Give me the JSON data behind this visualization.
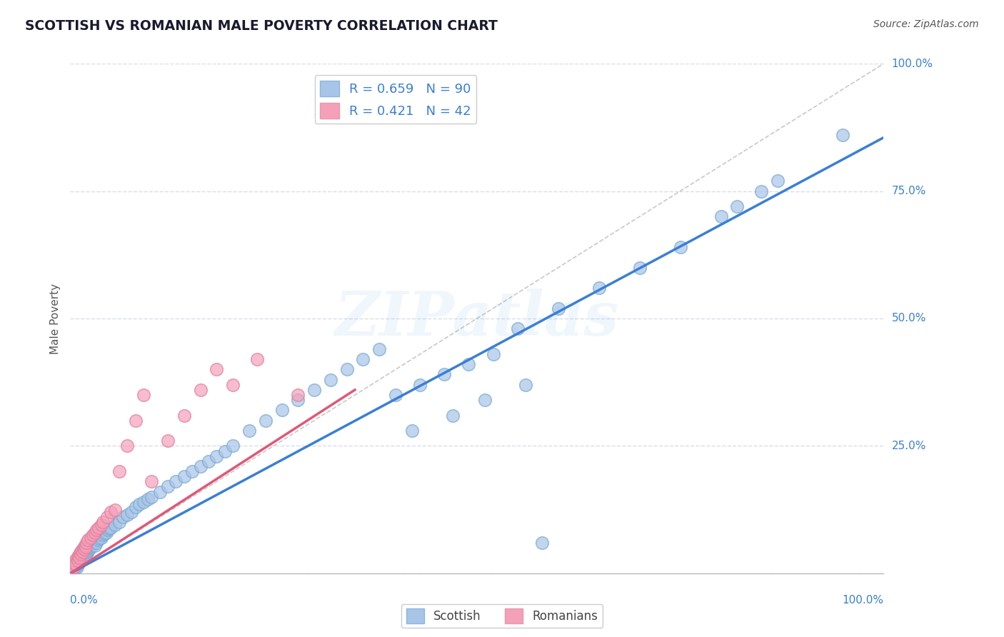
{
  "title": "SCOTTISH VS ROMANIAN MALE POVERTY CORRELATION CHART",
  "source": "Source: ZipAtlas.com",
  "ylabel": "Male Poverty",
  "ytick_vals": [
    0.0,
    0.25,
    0.5,
    0.75,
    1.0
  ],
  "ytick_labels": [
    "",
    "",
    "",
    "",
    ""
  ],
  "scottish_R": 0.659,
  "scottish_N": 90,
  "romanian_R": 0.421,
  "romanian_N": 42,
  "scottish_color": "#a8c4e8",
  "romanian_color": "#f4a0b8",
  "scottish_line_color": "#3a7fd5",
  "romanian_line_color": "#e05878",
  "diagonal_color": "#c8c8c8",
  "background_color": "#ffffff",
  "grid_color": "#d8dde8",
  "title_color": "#1a1a2e",
  "right_label_color": "#3a7fd5",
  "watermark_color": "#6ab0e8",
  "watermark": "ZIPatlas",
  "scottish_x": [
    0.002,
    0.003,
    0.004,
    0.005,
    0.005,
    0.006,
    0.007,
    0.008,
    0.009,
    0.01,
    0.01,
    0.011,
    0.012,
    0.013,
    0.014,
    0.015,
    0.015,
    0.016,
    0.017,
    0.018,
    0.019,
    0.02,
    0.021,
    0.022,
    0.023,
    0.024,
    0.025,
    0.026,
    0.027,
    0.028,
    0.03,
    0.032,
    0.034,
    0.036,
    0.038,
    0.04,
    0.042,
    0.044,
    0.046,
    0.048,
    0.05,
    0.055,
    0.06,
    0.065,
    0.07,
    0.075,
    0.08,
    0.085,
    0.09,
    0.095,
    0.1,
    0.11,
    0.12,
    0.13,
    0.14,
    0.15,
    0.16,
    0.17,
    0.18,
    0.19,
    0.2,
    0.22,
    0.24,
    0.26,
    0.28,
    0.3,
    0.32,
    0.34,
    0.36,
    0.38,
    0.4,
    0.43,
    0.46,
    0.49,
    0.52,
    0.55,
    0.6,
    0.65,
    0.7,
    0.75,
    0.42,
    0.47,
    0.51,
    0.56,
    0.58,
    0.8,
    0.82,
    0.85,
    0.87,
    0.95
  ],
  "scottish_y": [
    0.005,
    0.008,
    0.006,
    0.01,
    0.012,
    0.009,
    0.015,
    0.012,
    0.018,
    0.02,
    0.025,
    0.022,
    0.028,
    0.025,
    0.03,
    0.028,
    0.035,
    0.03,
    0.038,
    0.032,
    0.04,
    0.038,
    0.042,
    0.045,
    0.048,
    0.05,
    0.052,
    0.055,
    0.058,
    0.06,
    0.055,
    0.06,
    0.065,
    0.068,
    0.07,
    0.075,
    0.078,
    0.08,
    0.085,
    0.088,
    0.09,
    0.095,
    0.1,
    0.11,
    0.115,
    0.12,
    0.13,
    0.135,
    0.14,
    0.145,
    0.15,
    0.16,
    0.17,
    0.18,
    0.19,
    0.2,
    0.21,
    0.22,
    0.23,
    0.24,
    0.25,
    0.28,
    0.3,
    0.32,
    0.34,
    0.36,
    0.38,
    0.4,
    0.42,
    0.44,
    0.35,
    0.37,
    0.39,
    0.41,
    0.43,
    0.48,
    0.52,
    0.56,
    0.6,
    0.64,
    0.28,
    0.31,
    0.34,
    0.37,
    0.06,
    0.7,
    0.72,
    0.75,
    0.77,
    0.86
  ],
  "romanian_x": [
    0.002,
    0.003,
    0.004,
    0.005,
    0.006,
    0.007,
    0.008,
    0.009,
    0.01,
    0.011,
    0.012,
    0.013,
    0.014,
    0.015,
    0.016,
    0.017,
    0.018,
    0.019,
    0.02,
    0.022,
    0.025,
    0.028,
    0.03,
    0.032,
    0.035,
    0.038,
    0.04,
    0.045,
    0.05,
    0.055,
    0.06,
    0.07,
    0.08,
    0.09,
    0.1,
    0.12,
    0.14,
    0.16,
    0.18,
    0.2,
    0.23,
    0.28
  ],
  "romanian_y": [
    0.008,
    0.015,
    0.012,
    0.02,
    0.025,
    0.018,
    0.03,
    0.025,
    0.035,
    0.03,
    0.04,
    0.038,
    0.045,
    0.042,
    0.05,
    0.048,
    0.055,
    0.052,
    0.06,
    0.065,
    0.07,
    0.075,
    0.08,
    0.085,
    0.09,
    0.095,
    0.1,
    0.11,
    0.12,
    0.125,
    0.2,
    0.25,
    0.3,
    0.35,
    0.18,
    0.26,
    0.31,
    0.36,
    0.4,
    0.37,
    0.42,
    0.35
  ]
}
